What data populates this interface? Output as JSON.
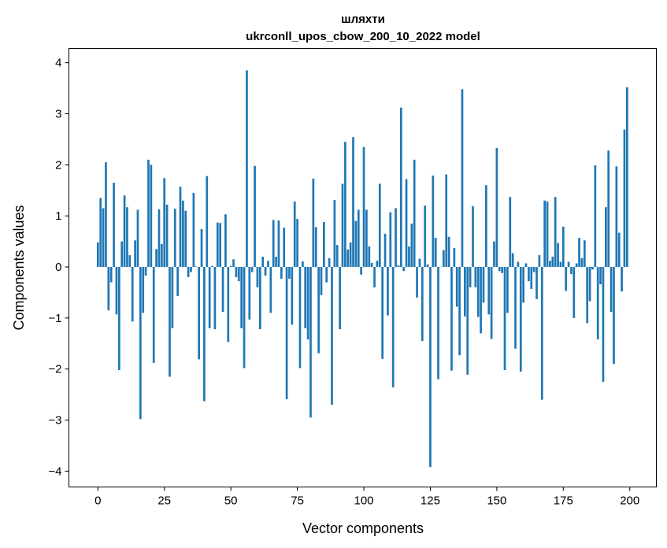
{
  "chart_data": {
    "type": "bar",
    "title_line1": "шляхти",
    "title_line2": "ukrconll_upos_cbow_200_10_2022 model",
    "xlabel": "Vector components",
    "ylabel": "Components values",
    "xlim": [
      -10.9,
      210
    ],
    "ylim": [
      -4.31,
      4.28
    ],
    "xticks": [
      0,
      25,
      50,
      75,
      100,
      125,
      150,
      175,
      200
    ],
    "yticks": [
      -4,
      -3,
      -2,
      -1,
      0,
      1,
      2,
      3,
      4
    ],
    "bar_color": "#1f77b4",
    "grid": false,
    "values": [
      0.48,
      1.35,
      1.15,
      2.05,
      -0.85,
      -0.3,
      1.65,
      -0.93,
      -2.02,
      0.5,
      1.4,
      1.17,
      0.23,
      -1.07,
      0.52,
      1.12,
      -2.98,
      -0.9,
      -0.17,
      2.1,
      2.0,
      -1.88,
      0.35,
      1.13,
      0.45,
      1.74,
      1.22,
      -2.15,
      -1.2,
      1.14,
      -0.57,
      1.57,
      1.3,
      1.1,
      -0.2,
      -0.1,
      1.45,
      0.01,
      -1.81,
      0.74,
      -2.63,
      1.78,
      -1.2,
      0.02,
      -1.22,
      0.87,
      0.86,
      -0.88,
      1.03,
      -1.47,
      0.02,
      0.15,
      -0.2,
      -0.28,
      -1.2,
      -1.98,
      3.85,
      -1.03,
      -0.1,
      1.98,
      -0.4,
      -1.22,
      0.2,
      -0.17,
      0.12,
      -0.9,
      0.92,
      0.2,
      0.91,
      -0.23,
      0.77,
      -2.59,
      -0.23,
      -1.13,
      1.28,
      0.94,
      -1.98,
      0.11,
      -1.2,
      -1.42,
      -2.95,
      1.73,
      0.78,
      -1.69,
      -0.55,
      0.88,
      -0.3,
      0.17,
      -2.7,
      1.31,
      0.43,
      -1.22,
      1.63,
      2.45,
      0.34,
      0.48,
      2.54,
      0.9,
      1.12,
      -0.15,
      2.35,
      1.12,
      0.4,
      0.08,
      -0.4,
      0.12,
      1.63,
      -1.8,
      0.65,
      -0.95,
      1.07,
      -2.36,
      1.15,
      0.03,
      3.12,
      -0.08,
      1.72,
      0.4,
      0.85,
      2.1,
      -0.6,
      0.16,
      -1.45,
      1.2,
      0.05,
      -3.92,
      1.79,
      0.57,
      -2.2,
      0.0,
      0.33,
      1.81,
      0.59,
      -2.03,
      0.37,
      -0.78,
      -1.73,
      3.48,
      -0.97,
      -2.11,
      -0.4,
      1.19,
      -0.4,
      -0.98,
      -1.3,
      -0.7,
      1.6,
      -0.93,
      -1.41,
      0.5,
      2.33,
      -0.08,
      -0.12,
      -2.02,
      -0.9,
      1.37,
      0.27,
      -1.6,
      0.1,
      -2.05,
      -0.7,
      0.07,
      -0.28,
      -0.43,
      -0.1,
      -0.63,
      0.23,
      -2.6,
      1.3,
      1.28,
      0.12,
      0.2,
      1.37,
      0.47,
      0.1,
      0.79,
      -0.47,
      0.1,
      -0.14,
      -1.0,
      0.07,
      0.57,
      0.17,
      0.52,
      -1.1,
      -0.67,
      -0.05,
      1.99,
      -1.42,
      -0.34,
      -2.25,
      1.17,
      2.28,
      -0.88,
      -1.9,
      1.97,
      0.67,
      -0.48,
      2.69,
      3.52
    ]
  }
}
